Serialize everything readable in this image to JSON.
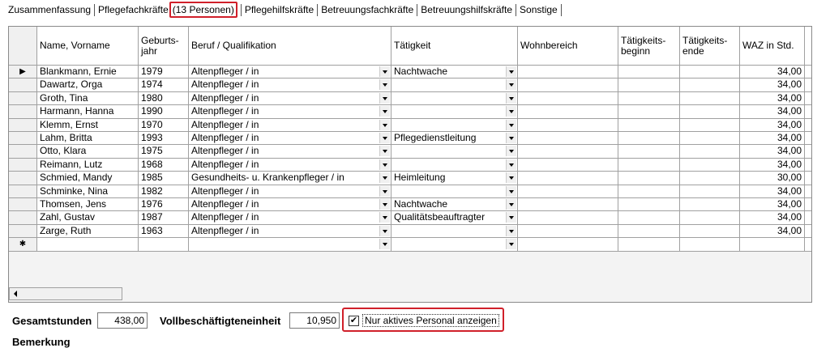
{
  "tabs": [
    "Zusammenfassung",
    "Pflegefachkräfte",
    "Pflegehilfskräfte",
    "Betreuungsfachkräfte",
    "Betreuungshilfskräfte",
    "Sonstige"
  ],
  "active_tab_count": "(13 Personen)",
  "table": {
    "columns": [
      "Name, Vorname",
      "Geburts-\njahr",
      "Beruf / Qualifikation",
      "Tätigkeit",
      "Wohnbereich",
      "Tätigkeits-\nbeginn",
      "Tätigkeits-\nende",
      "WAZ in Std."
    ],
    "rows": [
      [
        "Blankmann, Ernie",
        1979,
        "Altenpfleger / in",
        "Nachtwache",
        null,
        null,
        null,
        "34,00"
      ],
      [
        "Dawartz, Orga",
        1974,
        "Altenpfleger / in",
        null,
        null,
        null,
        null,
        "34,00"
      ],
      [
        "Groth, Tina",
        1980,
        "Altenpfleger / in",
        null,
        null,
        null,
        null,
        "34,00"
      ],
      [
        "Harmann, Hanna",
        1990,
        "Altenpfleger / in",
        null,
        null,
        null,
        null,
        "34,00"
      ],
      [
        "Klemm, Ernst",
        1970,
        "Altenpfleger / in",
        null,
        null,
        null,
        null,
        "34,00"
      ],
      [
        "Lahm, Britta",
        1993,
        "Altenpfleger / in",
        "Pflegedienstleitung",
        null,
        null,
        null,
        "34,00"
      ],
      [
        "Otto, Klara",
        1975,
        "Altenpfleger / in",
        null,
        null,
        null,
        null,
        "34,00"
      ],
      [
        "Reimann, Lutz",
        1968,
        "Altenpfleger / in",
        null,
        null,
        null,
        null,
        "34,00"
      ],
      [
        "Schmied, Mandy",
        1985,
        "Gesundheits- u. Krankenpfleger / in",
        "Heimleitung",
        null,
        null,
        null,
        "30,00"
      ],
      [
        "Schminke, Nina",
        1982,
        "Altenpfleger / in",
        null,
        null,
        null,
        null,
        "34,00"
      ],
      [
        "Thomsen, Jens",
        1976,
        "Altenpfleger / in",
        "Nachtwache",
        null,
        null,
        null,
        "34,00"
      ],
      [
        "Zahl, Gustav",
        1987,
        "Altenpfleger / in",
        "Qualitätsbeauftragter",
        null,
        null,
        null,
        "34,00"
      ],
      [
        "Zarge, Ruth",
        1963,
        "Altenpfleger / in",
        null,
        null,
        null,
        null,
        "34,00"
      ]
    ]
  },
  "footer": {
    "total_hours_label": "Gesamtstunden",
    "total_hours": "438,00",
    "fte_label": "Vollbeschäftigteneinheit",
    "fte": "10,950",
    "checkbox_label": "Nur aktives Personal anzeigen",
    "checkbox_checked": true,
    "remark_label": "Bemerkung"
  }
}
